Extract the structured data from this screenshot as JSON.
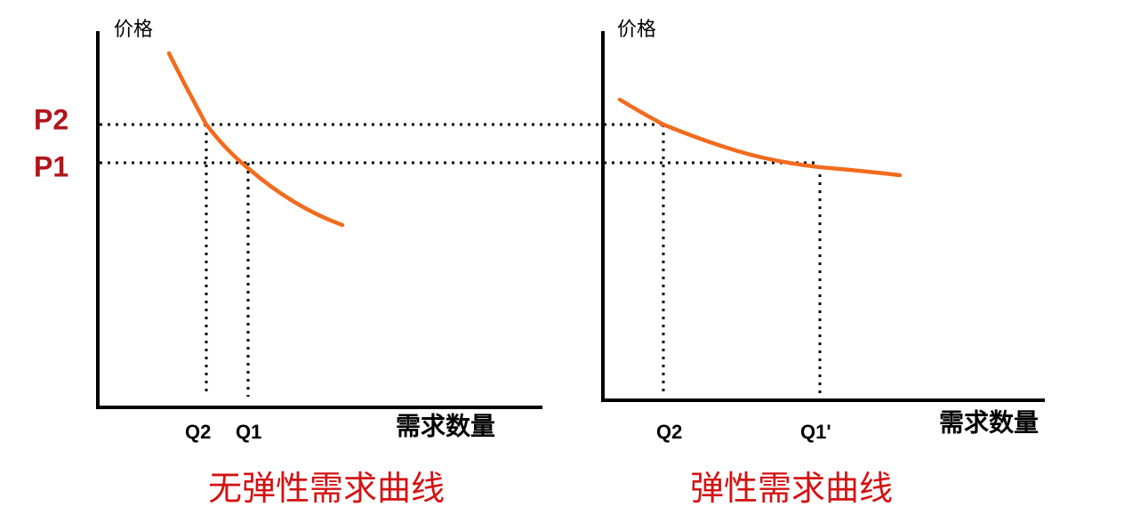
{
  "price_labels": [
    "P2",
    "P1"
  ],
  "panels": [
    {
      "y_axis_label": "价格",
      "x_axis_label": "需求数量",
      "quantity_labels": [
        "Q2",
        "Q1"
      ],
      "caption": "无弹性需求曲线"
    },
    {
      "y_axis_label": "价格",
      "x_axis_label": "需求数量",
      "quantity_labels": [
        "Q2",
        "Q1'"
      ],
      "caption": "弹性需求曲线"
    }
  ]
}
